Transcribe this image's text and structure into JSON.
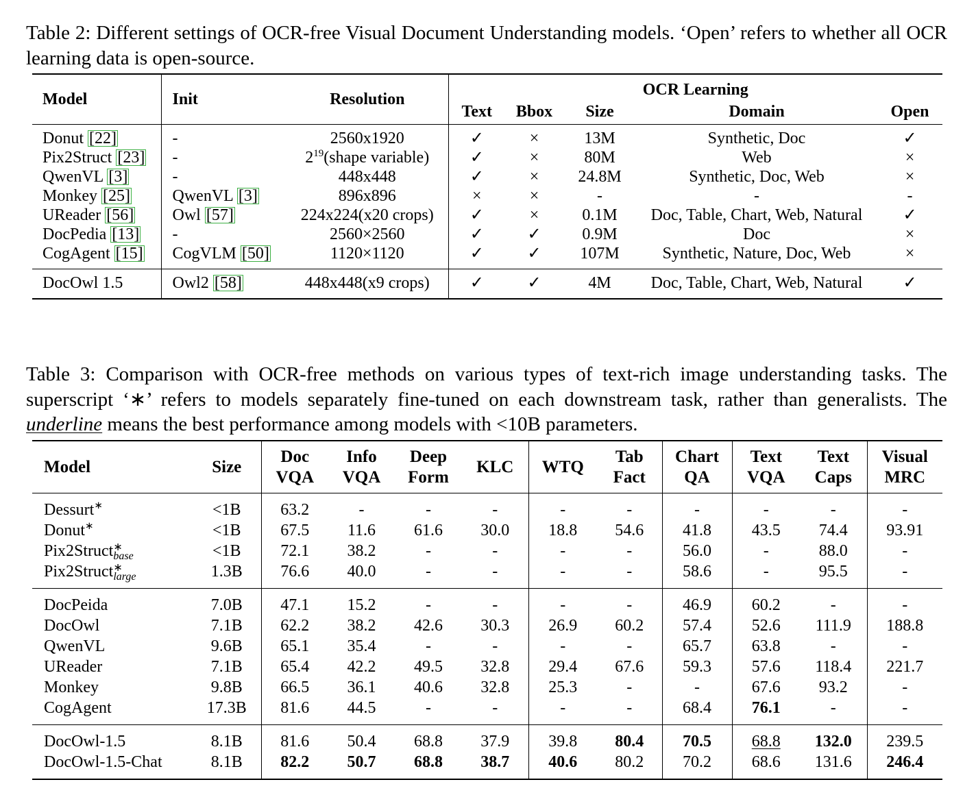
{
  "table2": {
    "caption": "Table 2: Different settings of OCR-free Visual Document Understanding models. ‘Open’ refers to whether all OCR learning data is open-source.",
    "headers": {
      "model": "Model",
      "init": "Init",
      "resolution": "Resolution",
      "ocr_learning": "OCR Learning",
      "ocr_columns": [
        "Text",
        "Bbox",
        "Size",
        "Domain",
        "Open"
      ]
    },
    "row_groups": [
      [
        [
          {
            "text": "Donut",
            "cite": "[22]"
          },
          "-",
          "2560x1920",
          "✓",
          "×",
          "13M",
          "Synthetic, Doc",
          "✓"
        ],
        [
          {
            "text": "Pix2Struct",
            "cite": "[23]"
          },
          "-",
          {
            "text": "2",
            "sup": "19",
            "after": "(shape variable)"
          },
          "✓",
          "×",
          "80M",
          "Web",
          "×"
        ],
        [
          {
            "text": "QwenVL",
            "cite": "[3]"
          },
          "-",
          "448x448",
          "✓",
          "×",
          "24.8M",
          "Synthetic, Doc, Web",
          "×"
        ],
        [
          {
            "text": "Monkey",
            "cite": "[25]"
          },
          {
            "text": "QwenVL",
            "cite": "[3]"
          },
          "896x896",
          "×",
          "×",
          "-",
          "-",
          "-"
        ],
        [
          {
            "text": "UReader",
            "cite": "[56]"
          },
          {
            "text": "Owl",
            "cite": "[57]"
          },
          "224x224(x20 crops)",
          "✓",
          "×",
          "0.1M",
          "Doc, Table, Chart, Web, Natural",
          "✓"
        ],
        [
          {
            "text": "DocPedia",
            "cite": "[13]"
          },
          "-",
          "2560×2560",
          "✓",
          "✓",
          "0.9M",
          "Doc",
          "×"
        ],
        [
          {
            "text": "CogAgent",
            "cite": "[15]"
          },
          {
            "text": "CogVLM",
            "cite": "[50]"
          },
          "1120×1120",
          "✓",
          "✓",
          "107M",
          "Synthetic, Nature, Doc, Web",
          "×"
        ]
      ],
      [
        [
          "DocOwl 1.5",
          {
            "text": "Owl2",
            "cite": "[58]"
          },
          "448x448(x9 crops)",
          "✓",
          "✓",
          "4M",
          "Doc, Table, Chart, Web, Natural",
          "✓"
        ]
      ]
    ]
  },
  "table3": {
    "caption": {
      "before": "Table 3: Comparison with OCR-free methods on various types of text-rich image understanding tasks. The superscript ‘∗’ refers to models separately fine-tuned on each downstream task, rather than generalists. The ",
      "emphasis": "underline",
      "after": " means the best performance among models with <10B parameters."
    },
    "headers": [
      [
        "Model"
      ],
      [
        "Size"
      ],
      [
        "Doc",
        "VQA"
      ],
      [
        "Info",
        "VQA"
      ],
      [
        "Deep",
        "Form"
      ],
      [
        "KLC"
      ],
      [
        "WTQ"
      ],
      [
        "Tab",
        "Fact"
      ],
      [
        "Chart",
        "QA"
      ],
      [
        "Text",
        "VQA"
      ],
      [
        "Text",
        "Caps"
      ],
      [
        "Visual",
        "MRC"
      ]
    ],
    "row_groups": [
      [
        [
          {
            "text": "Dessurt",
            "sup": "∗"
          },
          "<1B",
          "63.2",
          "-",
          "-",
          "-",
          "-",
          "-",
          "-",
          "-",
          "-",
          "-"
        ],
        [
          {
            "text": "Donut",
            "sup": "∗"
          },
          "<1B",
          "67.5",
          "11.6",
          "61.6",
          "30.0",
          "18.8",
          "54.6",
          "41.8",
          "43.5",
          "74.4",
          "93.91"
        ],
        [
          {
            "text": "Pix2Struct",
            "sup": "∗",
            "sub": "base"
          },
          "<1B",
          "72.1",
          "38.2",
          "-",
          "-",
          "-",
          "-",
          "56.0",
          "-",
          "88.0",
          "-"
        ],
        [
          {
            "text": "Pix2Struct",
            "sup": "∗",
            "sub": "large"
          },
          "1.3B",
          "76.6",
          "40.0",
          "-",
          "-",
          "-",
          "-",
          "58.6",
          "-",
          "95.5",
          "-"
        ]
      ],
      [
        [
          "DocPeida",
          "7.0B",
          "47.1",
          "15.2",
          "-",
          "-",
          "-",
          "-",
          "46.9",
          "60.2",
          "-",
          "-"
        ],
        [
          "DocOwl",
          "7.1B",
          "62.2",
          "38.2",
          "42.6",
          "30.3",
          "26.9",
          "60.2",
          "57.4",
          "52.6",
          "111.9",
          "188.8"
        ],
        [
          "QwenVL",
          "9.6B",
          "65.1",
          "35.4",
          "-",
          "-",
          "-",
          "-",
          "65.7",
          "63.8",
          "-",
          "-"
        ],
        [
          "UReader",
          "7.1B",
          "65.4",
          "42.2",
          "49.5",
          "32.8",
          "29.4",
          "67.6",
          "59.3",
          "57.6",
          "118.4",
          "221.7"
        ],
        [
          "Monkey",
          "9.8B",
          "66.5",
          "36.1",
          "40.6",
          "32.8",
          "25.3",
          "-",
          "-",
          "67.6",
          "93.2",
          "-"
        ],
        [
          "CogAgent",
          "17.3B",
          "81.6",
          "44.5",
          "-",
          "-",
          "-",
          "-",
          "68.4",
          {
            "text": "76.1",
            "bold": true
          },
          "-",
          "-"
        ]
      ],
      [
        [
          "DocOwl-1.5",
          "8.1B",
          "81.6",
          "50.4",
          "68.8",
          "37.9",
          "39.8",
          {
            "text": "80.4",
            "bold": true
          },
          {
            "text": "70.5",
            "bold": true
          },
          {
            "text": "68.8",
            "underline": true
          },
          {
            "text": "132.0",
            "bold": true
          },
          "239.5"
        ],
        [
          "DocOwl-1.5-Chat",
          "8.1B",
          {
            "text": "82.2",
            "bold": true
          },
          {
            "text": "50.7",
            "bold": true
          },
          {
            "text": "68.8",
            "bold": true
          },
          {
            "text": "38.7",
            "bold": true
          },
          {
            "text": "40.6",
            "bold": true
          },
          "80.2",
          "70.2",
          "68.6",
          "131.6",
          {
            "text": "246.4",
            "bold": true
          }
        ]
      ]
    ]
  }
}
